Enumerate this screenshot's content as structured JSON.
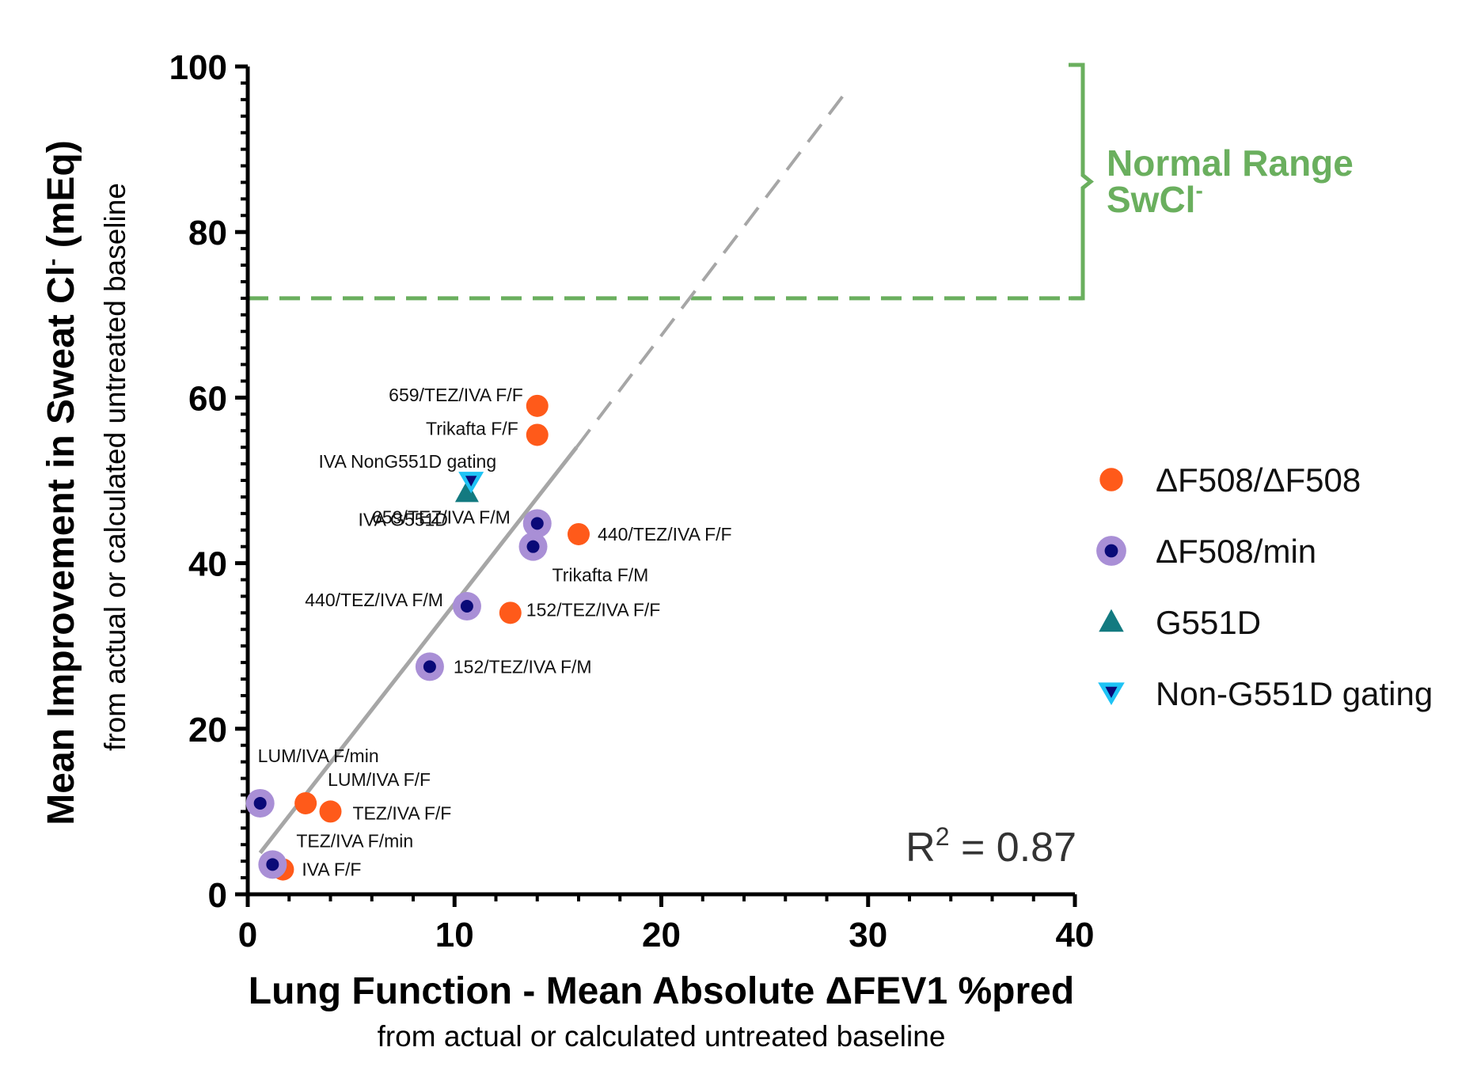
{
  "chart_data": {
    "type": "scatter",
    "xlabel": "Lung Function - Mean Absolute ΔFEV1 %pred",
    "xlabel_sub": "from actual or calculated untreated baseline",
    "ylabel": "Mean Improvement in Sweat Cl",
    "ylabel_sup": "-",
    "ylabel_tail": " (mEq)",
    "ylabel_sub": "from actual or calculated untreated  baseline",
    "xlim": [
      0,
      40
    ],
    "ylim": [
      0,
      100
    ],
    "xticks": [
      0,
      10,
      20,
      30,
      40
    ],
    "yticks": [
      0,
      20,
      40,
      60,
      80,
      100
    ],
    "x_tick_labels": [
      "0",
      "10",
      "20",
      "30",
      "40"
    ],
    "y_tick_labels": [
      "0",
      "20",
      "40",
      "60",
      "80",
      "100"
    ],
    "series": [
      {
        "name": "ΔF508/ΔF508",
        "marker": "circle",
        "color": "#FF5A1A",
        "points": [
          {
            "x": 14.0,
            "y": 59.0,
            "label": "659/TEZ/IVA F/F"
          },
          {
            "x": 14.0,
            "y": 55.5,
            "label": "Trikafta F/F"
          },
          {
            "x": 16.0,
            "y": 43.5,
            "label": "440/TEZ/IVA F/F"
          },
          {
            "x": 12.7,
            "y": 34.0,
            "label": "152/TEZ/IVA F/F"
          },
          {
            "x": 2.8,
            "y": 11.0,
            "label": "LUM/IVA F/F"
          },
          {
            "x": 4.0,
            "y": 10.0,
            "label": "TEZ/IVA F/F"
          },
          {
            "x": 1.7,
            "y": 3.0,
            "label": "IVA F/F"
          }
        ]
      },
      {
        "name": "ΔF508/min",
        "marker": "circle-ring",
        "color": "#0A0A78",
        "ring_color": "#A98FD6",
        "points": [
          {
            "x": 14.0,
            "y": 44.8,
            "label": "659/TEZ/IVA F/M"
          },
          {
            "x": 13.8,
            "y": 42.0,
            "label": "Trikafta F/M"
          },
          {
            "x": 10.6,
            "y": 34.8,
            "label": "440/TEZ/IVA F/M"
          },
          {
            "x": 8.8,
            "y": 27.5,
            "label": "152/TEZ/IVA F/M"
          },
          {
            "x": 0.6,
            "y": 11.0,
            "label": "LUM/IVA F/min"
          },
          {
            "x": 1.2,
            "y": 3.6,
            "label": "TEZ/IVA F/min"
          }
        ]
      },
      {
        "name": "G551D",
        "marker": "triangle-up",
        "color": "#137A80",
        "points": [
          {
            "x": 10.6,
            "y": 48.5,
            "label": "IVA G551D"
          }
        ]
      },
      {
        "name": "Non-G551D gating",
        "marker": "triangle-down",
        "color": "#0A0A78",
        "outline_color": "#1EC3F5",
        "points": [
          {
            "x": 10.8,
            "y": 49.8,
            "label": "IVA NonG551D gating"
          }
        ]
      }
    ],
    "regression": {
      "color": "#A6A6A6",
      "solid_from": [
        0.6,
        5.0
      ],
      "solid_to": [
        15.9,
        54.0
      ],
      "dashed_to": [
        28.8,
        96.5
      ],
      "r2_prefix": "R",
      "r2_sup": "2",
      "r2_value": " = 0.87"
    },
    "normal_range": {
      "color": "#6AAF5E",
      "y_start": 72,
      "y_end": 100,
      "label_line1": "Normal Range",
      "label_line2": "SwCl",
      "label_sup": "-"
    },
    "legend_position": "right"
  }
}
